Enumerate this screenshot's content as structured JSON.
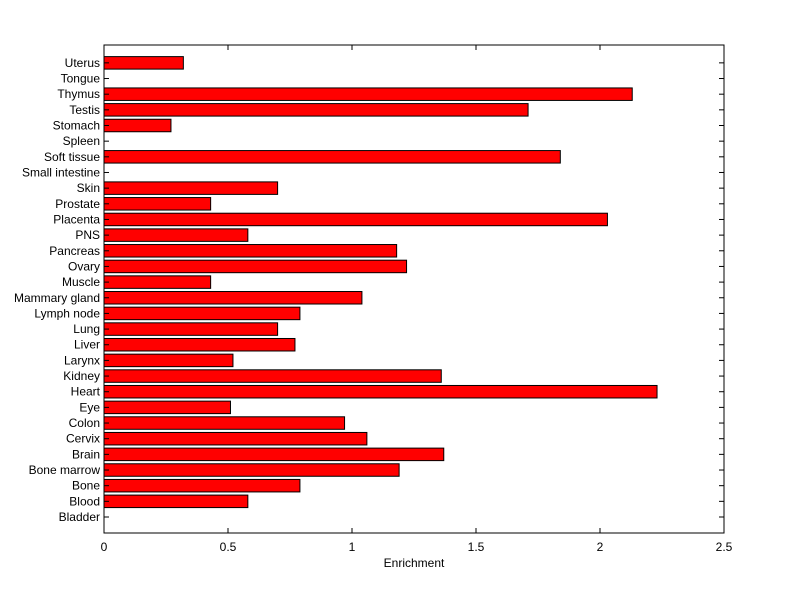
{
  "chart_data": {
    "type": "bar",
    "orientation": "horizontal",
    "title": "",
    "xlabel": "Enrichment",
    "ylabel": "",
    "xlim": [
      0,
      2.5
    ],
    "xticks": [
      0,
      0.5,
      1,
      1.5,
      2,
      2.5
    ],
    "xtick_labels": [
      "0",
      "0.5",
      "1",
      "1.5",
      "2",
      "2.5"
    ],
    "grid": false,
    "legend": "none",
    "bar_color": "#ff0000",
    "bar_edge_color": "#000000",
    "categories": [
      "Bladder",
      "Blood",
      "Bone",
      "Bone marrow",
      "Brain",
      "Cervix",
      "Colon",
      "Eye",
      "Heart",
      "Kidney",
      "Larynx",
      "Liver",
      "Lung",
      "Lymph node",
      "Mammary gland",
      "Muscle",
      "Ovary",
      "Pancreas",
      "PNS",
      "Placenta",
      "Prostate",
      "Skin",
      "Small intestine",
      "Soft tissue",
      "Spleen",
      "Stomach",
      "Testis",
      "Thymus",
      "Tongue",
      "Uterus"
    ],
    "values": [
      0,
      0.58,
      0.79,
      1.19,
      1.37,
      1.06,
      0.97,
      0.51,
      2.23,
      1.36,
      0.52,
      0.77,
      0.7,
      0.79,
      1.04,
      0.43,
      1.22,
      1.18,
      0.58,
      2.03,
      0.43,
      0.7,
      0,
      1.84,
      0,
      0.27,
      1.71,
      2.13,
      0,
      0.32
    ]
  }
}
